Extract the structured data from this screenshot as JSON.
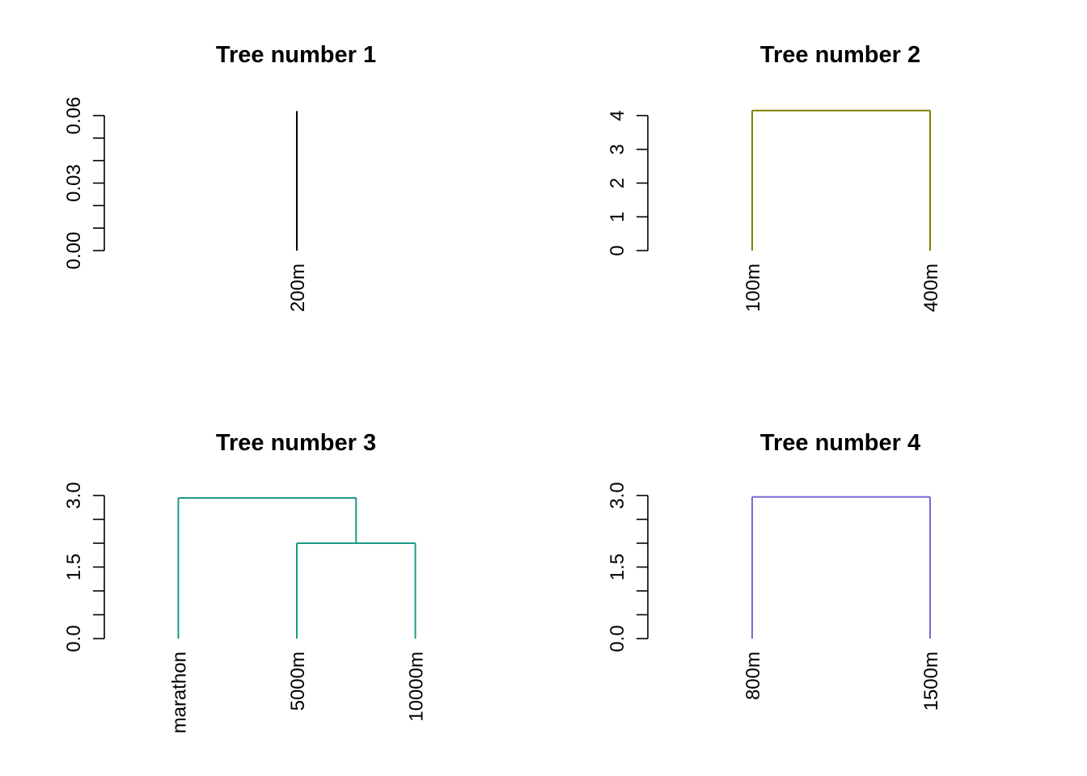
{
  "chart_data": [
    {
      "type": "dendrogram",
      "title": "Tree number 1",
      "color": "#000000",
      "ylim": [
        0,
        0.06
      ],
      "y_tick_labels": [
        "0.00",
        "0.03",
        "0.06"
      ],
      "y_tick_values": [
        0,
        0.03,
        0.06
      ],
      "y_minor_step": 0.01,
      "leaves": [
        "200m"
      ],
      "merges": [],
      "leaf_height": 0.062
    },
    {
      "type": "dendrogram",
      "title": "Tree number 2",
      "color": "#808000",
      "ylim": [
        0,
        4
      ],
      "y_tick_labels": [
        "0",
        "1",
        "2",
        "3",
        "4"
      ],
      "y_tick_values": [
        0,
        1,
        2,
        3,
        4
      ],
      "y_minor_step": null,
      "leaves": [
        "100m",
        "400m"
      ],
      "merges": [
        {
          "left": 0,
          "right": 1,
          "height": 4.15
        }
      ]
    },
    {
      "type": "dendrogram",
      "title": "Tree number 3",
      "color": "#1a9985",
      "ylim": [
        0,
        3
      ],
      "y_tick_labels": [
        "0.0",
        "1.5",
        "3.0"
      ],
      "y_tick_values": [
        0,
        1.5,
        3
      ],
      "y_minor_step": 0.5,
      "leaves": [
        "marathon",
        "5000m",
        "10000m"
      ],
      "merges": [
        {
          "left": 1,
          "right": 2,
          "height": 2.0
        },
        {
          "left": 0,
          "right": "m0",
          "height": 2.95
        }
      ]
    },
    {
      "type": "dendrogram",
      "title": "Tree number 4",
      "color": "#7b68d4",
      "ylim": [
        0,
        3
      ],
      "y_tick_labels": [
        "0.0",
        "1.5",
        "3.0"
      ],
      "y_tick_values": [
        0,
        1.5,
        3
      ],
      "y_minor_step": 0.5,
      "leaves": [
        "800m",
        "1500m"
      ],
      "merges": [
        {
          "left": 0,
          "right": 1,
          "height": 2.97
        }
      ]
    }
  ]
}
